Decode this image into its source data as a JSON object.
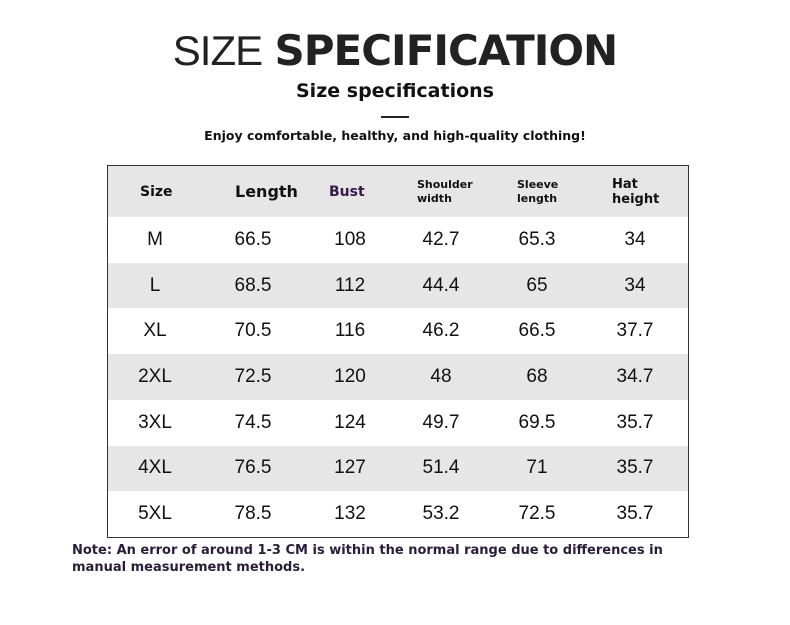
{
  "header": {
    "title_light": "SIZE",
    "title_bold": "SPECIFICATION",
    "subtitle": "Size specifications",
    "tagline": "Enjoy comfortable, healthy, and high-quality clothing!"
  },
  "table": {
    "columns": [
      "Size",
      "Length",
      "Bust",
      "Shoulder width",
      "Sleeve length",
      "Hat height"
    ],
    "rows": [
      [
        "M",
        "66.5",
        "108",
        "42.7",
        "65.3",
        "34"
      ],
      [
        "L",
        "68.5",
        "112",
        "44.4",
        "65",
        "34"
      ],
      [
        "XL",
        "70.5",
        "116",
        "46.2",
        "66.5",
        "37.7"
      ],
      [
        "2XL",
        "72.5",
        "120",
        "48",
        "68",
        "34.7"
      ],
      [
        "3XL",
        "74.5",
        "124",
        "49.7",
        "69.5",
        "35.7"
      ],
      [
        "4XL",
        "76.5",
        "127",
        "51.4",
        "71",
        "35.7"
      ],
      [
        "5XL",
        "78.5",
        "132",
        "53.2",
        "72.5",
        "35.7"
      ]
    ]
  },
  "note": "Note: An error of around 1-3 CM is within the normal range due to differences in manual measurement methods."
}
